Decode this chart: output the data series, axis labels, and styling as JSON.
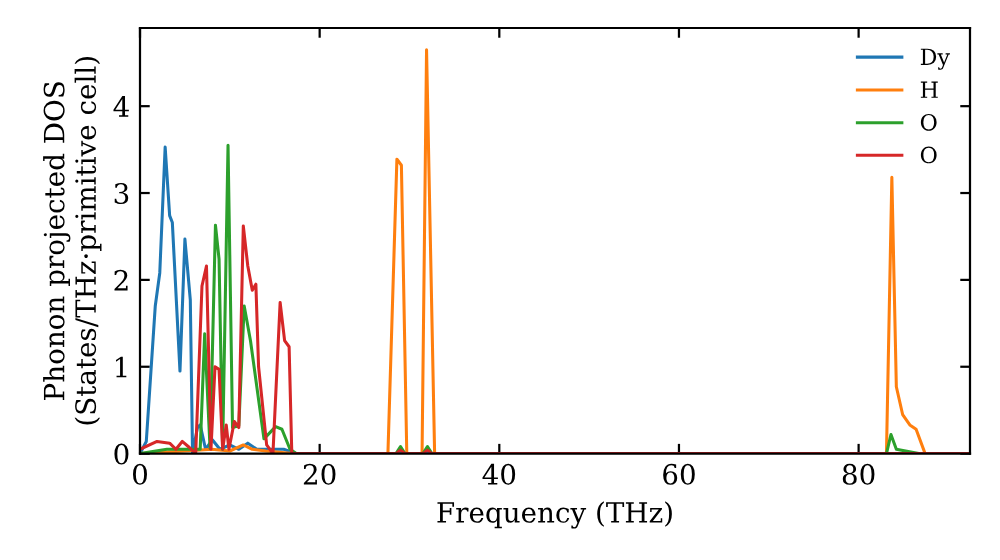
{
  "chart_data": {
    "type": "line",
    "xlabel": "Frequency (THz)",
    "ylabel": "Phonon projected DOS\n(States/THz·primitive cell)",
    "xlim": [
      0,
      92.4
    ],
    "ylim": [
      0,
      4.9
    ],
    "xticks": [
      0,
      20,
      40,
      60,
      80
    ],
    "yticks": [
      0,
      1,
      2,
      3,
      4
    ],
    "grid": false,
    "legend": "top right",
    "line_style": "solid",
    "marker": "none",
    "series": [
      {
        "name": "Dy",
        "color": "#1f77b4",
        "x": [
          0,
          0.7,
          1.7,
          2.2,
          2.8,
          3.3,
          3.6,
          4.45,
          5.0,
          5.6,
          5.85,
          6.4,
          6.7,
          7.3,
          8.05,
          8.9,
          10,
          11,
          12,
          13,
          14,
          15,
          16,
          17.4,
          92.4
        ],
        "values": [
          0,
          0.14,
          1.7,
          2.08,
          3.53,
          2.74,
          2.66,
          0.95,
          2.47,
          1.77,
          0,
          0.3,
          0.33,
          0.05,
          0.16,
          0.05,
          0.1,
          0.05,
          0.12,
          0.05,
          0.05,
          0.05,
          0.05,
          0,
          0
        ]
      },
      {
        "name": "H",
        "color": "#ff7f0e",
        "x": [
          0,
          5,
          8,
          10,
          11.5,
          12.5,
          14,
          17,
          27.6,
          28.6,
          29.1,
          29.7,
          31.4,
          31.9,
          32.8,
          83.1,
          83.7,
          84.2,
          84.9,
          85.7,
          86.4,
          87.4,
          92.4
        ],
        "values": [
          0,
          0.03,
          0.05,
          0.03,
          0.1,
          0.05,
          0.03,
          0,
          0,
          3.39,
          3.32,
          0,
          0,
          4.65,
          0,
          0,
          3.18,
          0.77,
          0.45,
          0.33,
          0.28,
          0,
          0
        ]
      },
      {
        "name": "O",
        "color": "#2ca02c",
        "x": [
          0,
          3,
          6.7,
          7.2,
          7.8,
          8.4,
          8.8,
          9.2,
          9.8,
          10.3,
          11,
          11.6,
          12.3,
          12.7,
          13.8,
          15.1,
          15.8,
          16.7,
          17.4,
          28.5,
          29,
          29.5,
          31.5,
          32,
          32.5,
          83.1,
          83.6,
          84.2,
          86.7,
          92.4
        ],
        "values": [
          0,
          0.05,
          0.05,
          1.38,
          0.06,
          2.63,
          2.24,
          0.05,
          3.55,
          0.3,
          0.32,
          1.7,
          1.3,
          1.0,
          0.17,
          0.31,
          0.28,
          0.05,
          0,
          0,
          0.08,
          0,
          0,
          0.08,
          0,
          0,
          0.22,
          0.05,
          0,
          0
        ]
      },
      {
        "name": "O",
        "color": "#d62728",
        "x": [
          0,
          1.9,
          3.3,
          4,
          4.7,
          5.5,
          6.2,
          6.9,
          7.4,
          7.9,
          8.35,
          8.8,
          9.2,
          9.6,
          9.9,
          10.5,
          11,
          11.5,
          12,
          12.5,
          12.9,
          13.2,
          14.1,
          14.8,
          15.6,
          16.1,
          16.6,
          16.9,
          28.5,
          29,
          29.5,
          31.5,
          32,
          32.5,
          92.4
        ],
        "values": [
          0.05,
          0.14,
          0.12,
          0.05,
          0.14,
          0.07,
          0,
          1.93,
          2.16,
          0.05,
          1.0,
          0.97,
          0.05,
          0.33,
          0.05,
          0.37,
          0.3,
          2.62,
          2.16,
          1.88,
          1.95,
          1.0,
          0.1,
          0,
          1.74,
          1.3,
          1.23,
          0,
          0,
          0.04,
          0,
          0,
          0.04,
          0,
          0
        ]
      }
    ]
  }
}
